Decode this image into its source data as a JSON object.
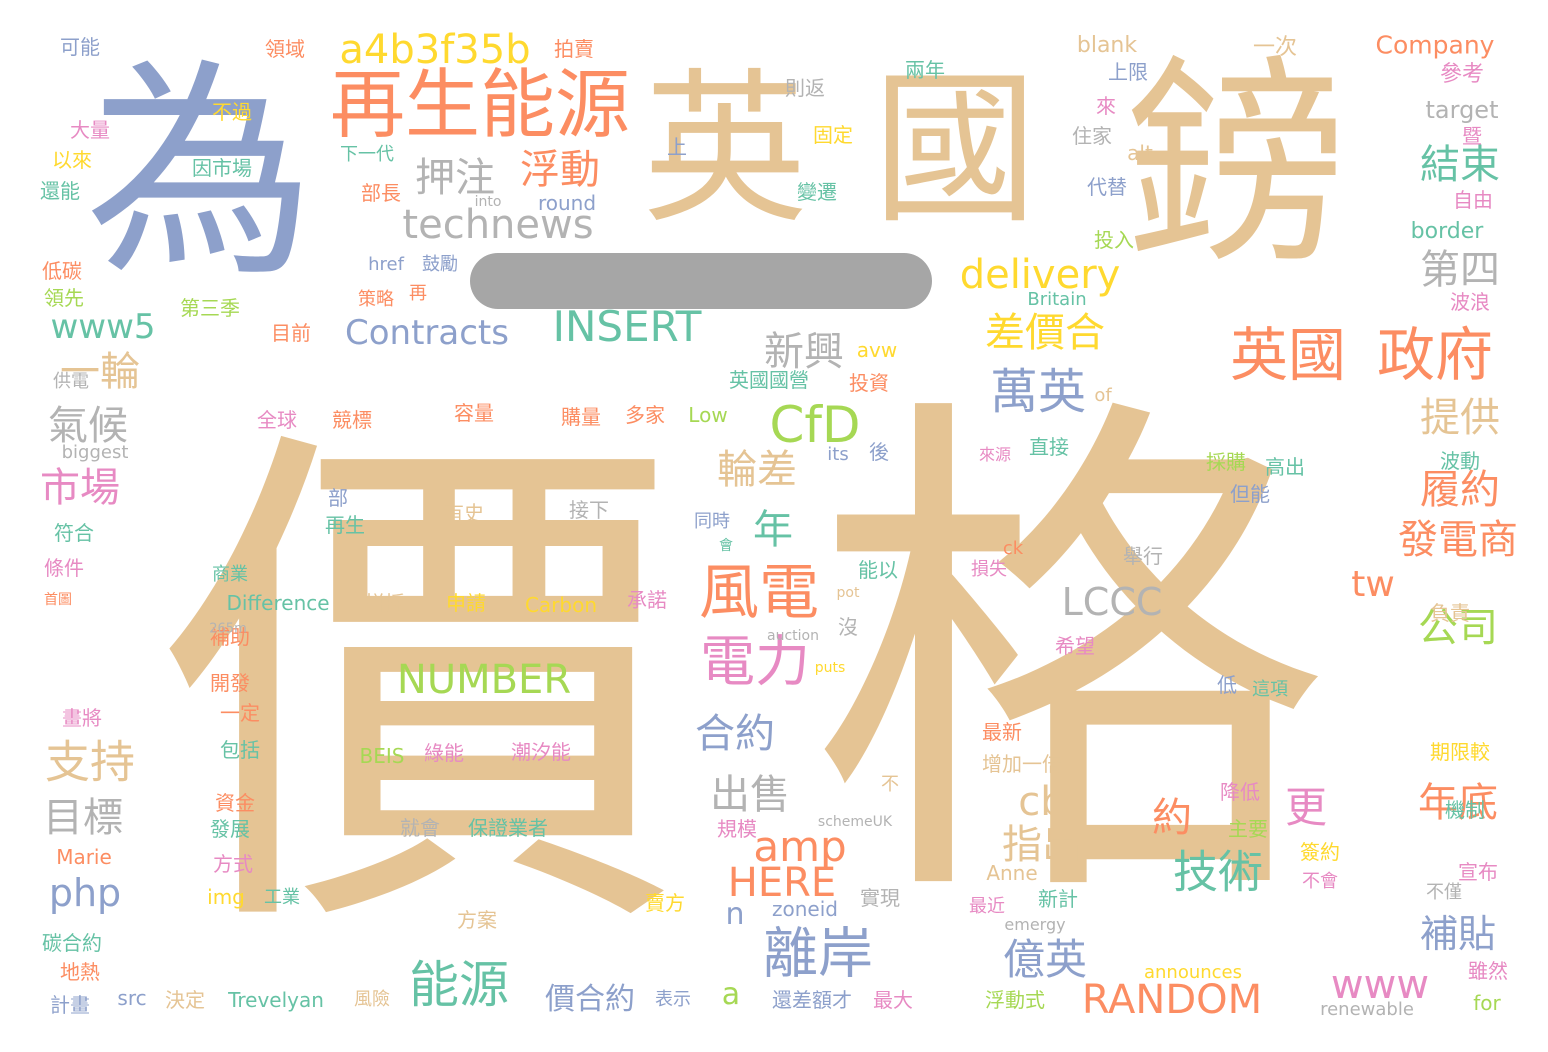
{
  "palette": {
    "tan": "#e5c494",
    "blue": "#8da0cb",
    "orange": "#fc8d62",
    "green": "#66c2a5",
    "pink": "#e78ac3",
    "lime": "#a6d854",
    "yellow": "#ffd92f",
    "gray": "#b3b3b3"
  },
  "words": [
    {
      "text": "價",
      "color": "tan"
    },
    {
      "text": "格",
      "color": "tan"
    },
    {
      "text": "為",
      "color": "blue"
    },
    {
      "text": "英",
      "color": "tan"
    },
    {
      "text": "國",
      "color": "tan"
    },
    {
      "text": "鎊",
      "color": "tan"
    },
    {
      "text": "再生能源",
      "color": "orange"
    },
    {
      "text": "a4b3f35b",
      "color": "yellow"
    },
    {
      "text": "technews",
      "color": "gray"
    },
    {
      "text": "押注",
      "color": "gray"
    },
    {
      "text": "浮動",
      "color": "orange"
    },
    {
      "text": "英國",
      "color": "orange"
    },
    {
      "text": "政府",
      "color": "orange"
    },
    {
      "text": "delivery",
      "color": "yellow"
    },
    {
      "text": "Contracts",
      "color": "blue"
    },
    {
      "text": "INSERT",
      "color": "green"
    },
    {
      "text": "www5",
      "color": "green"
    },
    {
      "text": "差價合",
      "color": "yellow"
    },
    {
      "text": "新興",
      "color": "gray"
    },
    {
      "text": "萬英",
      "color": "blue"
    },
    {
      "text": "CfD",
      "color": "lime"
    },
    {
      "text": "一輪",
      "color": "tan"
    },
    {
      "text": "氣候",
      "color": "gray"
    },
    {
      "text": "市場",
      "color": "pink"
    },
    {
      "text": "輪差",
      "color": "tan"
    },
    {
      "text": "年",
      "color": "green"
    },
    {
      "text": "風電",
      "color": "orange"
    },
    {
      "text": "NUMBER",
      "color": "lime"
    },
    {
      "text": "LCCC",
      "color": "gray"
    },
    {
      "text": "電力",
      "color": "pink"
    },
    {
      "text": "合約",
      "color": "blue"
    },
    {
      "text": "支持",
      "color": "tan"
    },
    {
      "text": "目標",
      "color": "gray"
    },
    {
      "text": "出售",
      "color": "gray"
    },
    {
      "text": "amp",
      "color": "orange"
    },
    {
      "text": "cb",
      "color": "tan"
    },
    {
      "text": "指出",
      "color": "tan"
    },
    {
      "text": "php",
      "color": "blue"
    },
    {
      "text": "HERE",
      "color": "orange"
    },
    {
      "text": "n",
      "color": "blue"
    },
    {
      "text": "離岸",
      "color": "blue"
    },
    {
      "text": "能源",
      "color": "green"
    },
    {
      "text": "價合約",
      "color": "blue"
    },
    {
      "text": "a",
      "color": "lime"
    },
    {
      "text": "RANDOM",
      "color": "orange"
    },
    {
      "text": "億英",
      "color": "blue"
    },
    {
      "text": "www",
      "color": "pink"
    },
    {
      "text": "約",
      "color": "orange"
    },
    {
      "text": "更",
      "color": "pink"
    },
    {
      "text": "技術",
      "color": "green"
    },
    {
      "text": "年底",
      "color": "orange"
    },
    {
      "text": "補貼",
      "color": "blue"
    },
    {
      "text": "發電商",
      "color": "orange"
    },
    {
      "text": "公司",
      "color": "lime"
    },
    {
      "text": "tw",
      "color": "orange"
    },
    {
      "text": "履約",
      "color": "orange"
    },
    {
      "text": "提供",
      "color": "tan"
    },
    {
      "text": "第四",
      "color": "gray"
    },
    {
      "text": "結束",
      "color": "green"
    },
    {
      "text": "Company",
      "color": "orange"
    },
    {
      "text": "一次",
      "color": "tan"
    },
    {
      "text": "參考",
      "color": "pink"
    },
    {
      "text": "target",
      "color": "gray"
    },
    {
      "text": "暨",
      "color": "pink"
    },
    {
      "text": "blank",
      "color": "tan"
    },
    {
      "text": "上限",
      "color": "blue"
    },
    {
      "text": "兩年",
      "color": "green"
    },
    {
      "text": "則返",
      "color": "gray"
    },
    {
      "text": "固定",
      "color": "yellow"
    },
    {
      "text": "拍賣",
      "color": "orange"
    },
    {
      "text": "領域",
      "color": "orange"
    },
    {
      "text": "可能",
      "color": "blue"
    },
    {
      "text": "不過",
      "color": "yellow"
    },
    {
      "text": "大量",
      "color": "pink"
    },
    {
      "text": "以來",
      "color": "yellow"
    },
    {
      "text": "還能",
      "color": "green"
    },
    {
      "text": "因市場",
      "color": "green"
    },
    {
      "text": "下一代",
      "color": "green"
    },
    {
      "text": "部長",
      "color": "orange"
    },
    {
      "text": "round",
      "color": "blue"
    },
    {
      "text": "into",
      "color": "gray"
    },
    {
      "text": "上",
      "color": "blue"
    },
    {
      "text": "住家",
      "color": "gray"
    },
    {
      "text": "來",
      "color": "pink"
    },
    {
      "text": "alt",
      "color": "tan"
    },
    {
      "text": "代替",
      "color": "blue"
    },
    {
      "text": "變遷",
      "color": "green"
    },
    {
      "text": "自由",
      "color": "pink"
    },
    {
      "text": "border",
      "color": "green"
    },
    {
      "text": "投入",
      "color": "lime"
    },
    {
      "text": "Britain",
      "color": "green"
    },
    {
      "text": "波浪",
      "color": "pink"
    },
    {
      "text": "低碳",
      "color": "orange"
    },
    {
      "text": "領先",
      "color": "lime"
    },
    {
      "text": "第三季",
      "color": "lime"
    },
    {
      "text": "href",
      "color": "blue"
    },
    {
      "text": "鼓勵",
      "color": "blue"
    },
    {
      "text": "再",
      "color": "orange"
    },
    {
      "text": "策略",
      "color": "orange"
    },
    {
      "text": "目前",
      "color": "orange"
    },
    {
      "text": "avw",
      "color": "yellow"
    },
    {
      "text": "英國國營",
      "color": "green"
    },
    {
      "text": "投資",
      "color": "orange"
    },
    {
      "text": "供電",
      "color": "gray"
    },
    {
      "text": "全球",
      "color": "pink"
    },
    {
      "text": "競標",
      "color": "orange"
    },
    {
      "text": "容量",
      "color": "orange"
    },
    {
      "text": "購量",
      "color": "orange"
    },
    {
      "text": "多家",
      "color": "orange"
    },
    {
      "text": "Low",
      "color": "lime"
    },
    {
      "text": "of",
      "color": "tan"
    },
    {
      "text": "直接",
      "color": "green"
    },
    {
      "text": "biggest",
      "color": "gray"
    },
    {
      "text": "its",
      "color": "blue"
    },
    {
      "text": "後",
      "color": "blue"
    },
    {
      "text": "來源",
      "color": "pink"
    },
    {
      "text": "採購",
      "color": "lime"
    },
    {
      "text": "高出",
      "color": "green"
    },
    {
      "text": "波動",
      "color": "green"
    },
    {
      "text": "但能",
      "color": "blue"
    },
    {
      "text": "符合",
      "color": "green"
    },
    {
      "text": "部",
      "color": "blue"
    },
    {
      "text": "再生",
      "color": "green"
    },
    {
      "text": "有史",
      "color": "tan"
    },
    {
      "text": "接下",
      "color": "gray"
    },
    {
      "text": "同時",
      "color": "blue"
    },
    {
      "text": "會",
      "color": "green"
    },
    {
      "text": "舉行",
      "color": "gray"
    },
    {
      "text": "條件",
      "color": "pink"
    },
    {
      "text": "商業",
      "color": "green"
    },
    {
      "text": "首圖",
      "color": "orange"
    },
    {
      "text": "能以",
      "color": "green"
    },
    {
      "text": "ck",
      "color": "orange"
    },
    {
      "text": "損失",
      "color": "pink"
    },
    {
      "text": "負責",
      "color": "tan"
    },
    {
      "text": "Difference",
      "color": "green"
    },
    {
      "text": "拼採",
      "color": "tan"
    },
    {
      "text": "申請",
      "color": "yellow"
    },
    {
      "text": "Carbon",
      "color": "yellow"
    },
    {
      "text": "承諾",
      "color": "pink"
    },
    {
      "text": "pot",
      "color": "tan"
    },
    {
      "text": "補助",
      "color": "orange"
    },
    {
      "text": "265m",
      "color": "gray"
    },
    {
      "text": "auction",
      "color": "gray"
    },
    {
      "text": "沒",
      "color": "gray"
    },
    {
      "text": "希望",
      "color": "pink"
    },
    {
      "text": "開發",
      "color": "orange"
    },
    {
      "text": "puts",
      "color": "yellow"
    },
    {
      "text": "低",
      "color": "blue"
    },
    {
      "text": "這項",
      "color": "green"
    },
    {
      "text": "畫將",
      "color": "pink"
    },
    {
      "text": "一定",
      "color": "orange"
    },
    {
      "text": "包括",
      "color": "green"
    },
    {
      "text": "BEIS",
      "color": "lime"
    },
    {
      "text": "綠能",
      "color": "pink"
    },
    {
      "text": "潮汐能",
      "color": "pink"
    },
    {
      "text": "最新",
      "color": "orange"
    },
    {
      "text": "期限較",
      "color": "yellow"
    },
    {
      "text": "增加一倍",
      "color": "tan"
    },
    {
      "text": "不",
      "color": "tan"
    },
    {
      "text": "資金",
      "color": "orange"
    },
    {
      "text": "降低",
      "color": "pink"
    },
    {
      "text": "機制",
      "color": "green"
    },
    {
      "text": "發展",
      "color": "green"
    },
    {
      "text": "規模",
      "color": "pink"
    },
    {
      "text": "schemeUK",
      "color": "gray"
    },
    {
      "text": "就會",
      "color": "gray"
    },
    {
      "text": "保證業者",
      "color": "green"
    },
    {
      "text": "主要",
      "color": "lime"
    },
    {
      "text": "簽約",
      "color": "yellow"
    },
    {
      "text": "宣布",
      "color": "pink"
    },
    {
      "text": "Marie",
      "color": "orange"
    },
    {
      "text": "方式",
      "color": "pink"
    },
    {
      "text": "Anne",
      "color": "tan"
    },
    {
      "text": "不會",
      "color": "pink"
    },
    {
      "text": "不僅",
      "color": "gray"
    },
    {
      "text": "img",
      "color": "yellow"
    },
    {
      "text": "工業",
      "color": "green"
    },
    {
      "text": "實現",
      "color": "gray"
    },
    {
      "text": "賣方",
      "color": "yellow"
    },
    {
      "text": "zoneid",
      "color": "blue"
    },
    {
      "text": "最近",
      "color": "pink"
    },
    {
      "text": "新計",
      "color": "green"
    },
    {
      "text": "方案",
      "color": "tan"
    },
    {
      "text": "emergy",
      "color": "gray"
    },
    {
      "text": "碳合約",
      "color": "green"
    },
    {
      "text": "地熱",
      "color": "orange"
    },
    {
      "text": "announces",
      "color": "yellow"
    },
    {
      "text": "雖然",
      "color": "pink"
    },
    {
      "text": "計畫",
      "color": "blue"
    },
    {
      "text": "src",
      "color": "blue"
    },
    {
      "text": "決定",
      "color": "tan"
    },
    {
      "text": "Trevelyan",
      "color": "green"
    },
    {
      "text": "表示",
      "color": "blue"
    },
    {
      "text": "還差額才",
      "color": "blue"
    },
    {
      "text": "最大",
      "color": "pink"
    },
    {
      "text": "風險",
      "color": "tan"
    },
    {
      "text": "浮動式",
      "color": "lime"
    },
    {
      "text": "renewable",
      "color": "gray"
    },
    {
      "text": "for",
      "color": "lime"
    }
  ]
}
